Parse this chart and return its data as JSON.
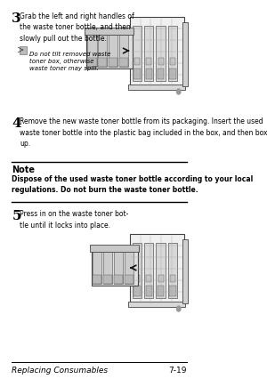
{
  "bg_color": "#ffffff",
  "page_width": 3.0,
  "page_height": 4.27,
  "footer_text_left": "Replacing Consumables",
  "footer_text_right": "7-19",
  "step3_num": "3",
  "step3_text": "Grab the left and right handles of\nthe waste toner bottle, and then\nslowly pull out the bottle.",
  "step3_note_text": "Do not tilt removed waste\ntoner box, otherwise\nwaste toner may spill.",
  "step4_num": "4",
  "step4_text": "Remove the new waste toner bottle from its packaging. Insert the used\nwaste toner bottle into the plastic bag included in the box, and then box it\nup.",
  "note_title": "Note",
  "note_body": "Dispose of the used waste toner bottle according to your local\nregulations. Do not burn the waste toner bottle.",
  "step5_num": "5",
  "step5_text": "Press in on the waste toner bot-\ntle until it locks into place.",
  "text_color": "#000000",
  "note_line_color": "#000000",
  "footer_line_color": "#000000"
}
